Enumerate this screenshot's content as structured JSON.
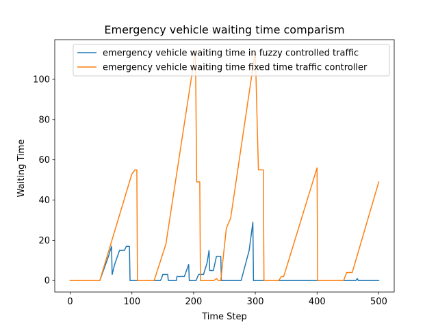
{
  "chart_data": {
    "type": "line",
    "title": "Emergency vehicle waiting time comparism",
    "xlabel": "Time Step",
    "ylabel": "Waiting Time",
    "xlim": [
      -25,
      525
    ],
    "ylim": [
      -5.7,
      119.7
    ],
    "xticks": [
      0,
      100,
      200,
      300,
      400,
      500
    ],
    "yticks": [
      0,
      20,
      40,
      60,
      80,
      100
    ],
    "grid": false,
    "legend_position": "top-right",
    "series": [
      {
        "name": "emergency vehicle waiting time in fuzzy controlled traffic",
        "color": "#1f77b4",
        "points": [
          [
            0,
            0
          ],
          [
            48,
            0
          ],
          [
            62,
            12
          ],
          [
            67,
            17
          ],
          [
            68,
            3
          ],
          [
            72,
            8
          ],
          [
            80,
            15
          ],
          [
            88,
            15
          ],
          [
            91,
            17
          ],
          [
            96,
            17
          ],
          [
            97,
            0
          ],
          [
            143,
            0
          ],
          [
            146,
            0
          ],
          [
            148,
            1
          ],
          [
            150,
            3
          ],
          [
            158,
            3
          ],
          [
            159,
            0
          ],
          [
            172,
            0
          ],
          [
            173,
            2
          ],
          [
            185,
            2
          ],
          [
            192,
            8
          ],
          [
            193,
            0
          ],
          [
            204,
            0
          ],
          [
            208,
            3
          ],
          [
            216,
            3
          ],
          [
            222,
            9
          ],
          [
            225,
            15
          ],
          [
            226,
            5
          ],
          [
            232,
            5
          ],
          [
            237,
            12
          ],
          [
            244,
            12
          ],
          [
            245,
            0
          ],
          [
            277,
            0
          ],
          [
            290,
            15
          ],
          [
            296,
            29
          ],
          [
            297,
            0
          ],
          [
            463,
            0
          ],
          [
            465,
            1
          ],
          [
            467,
            0
          ],
          [
            500,
            0
          ]
        ]
      },
      {
        "name": "emergency vehicle waiting time fixed time traffic controller",
        "color": "#ff7f0e",
        "points": [
          [
            0,
            0
          ],
          [
            48,
            0
          ],
          [
            100,
            53
          ],
          [
            105,
            55
          ],
          [
            108,
            55
          ],
          [
            109,
            0
          ],
          [
            136,
            0
          ],
          [
            155,
            18
          ],
          [
            203,
            114
          ],
          [
            205,
            49
          ],
          [
            210,
            49
          ],
          [
            211,
            0
          ],
          [
            230,
            0
          ],
          [
            233,
            0
          ],
          [
            237,
            1
          ],
          [
            240,
            0
          ],
          [
            244,
            0
          ],
          [
            253,
            26
          ],
          [
            260,
            31
          ],
          [
            300,
            114
          ],
          [
            305,
            55
          ],
          [
            313,
            55
          ],
          [
            314,
            0
          ],
          [
            338,
            0
          ],
          [
            342,
            2
          ],
          [
            346,
            2
          ],
          [
            400,
            56
          ],
          [
            401,
            0
          ],
          [
            440,
            0
          ],
          [
            443,
            0
          ],
          [
            448,
            4
          ],
          [
            457,
            4
          ],
          [
            500,
            49
          ]
        ]
      }
    ]
  }
}
